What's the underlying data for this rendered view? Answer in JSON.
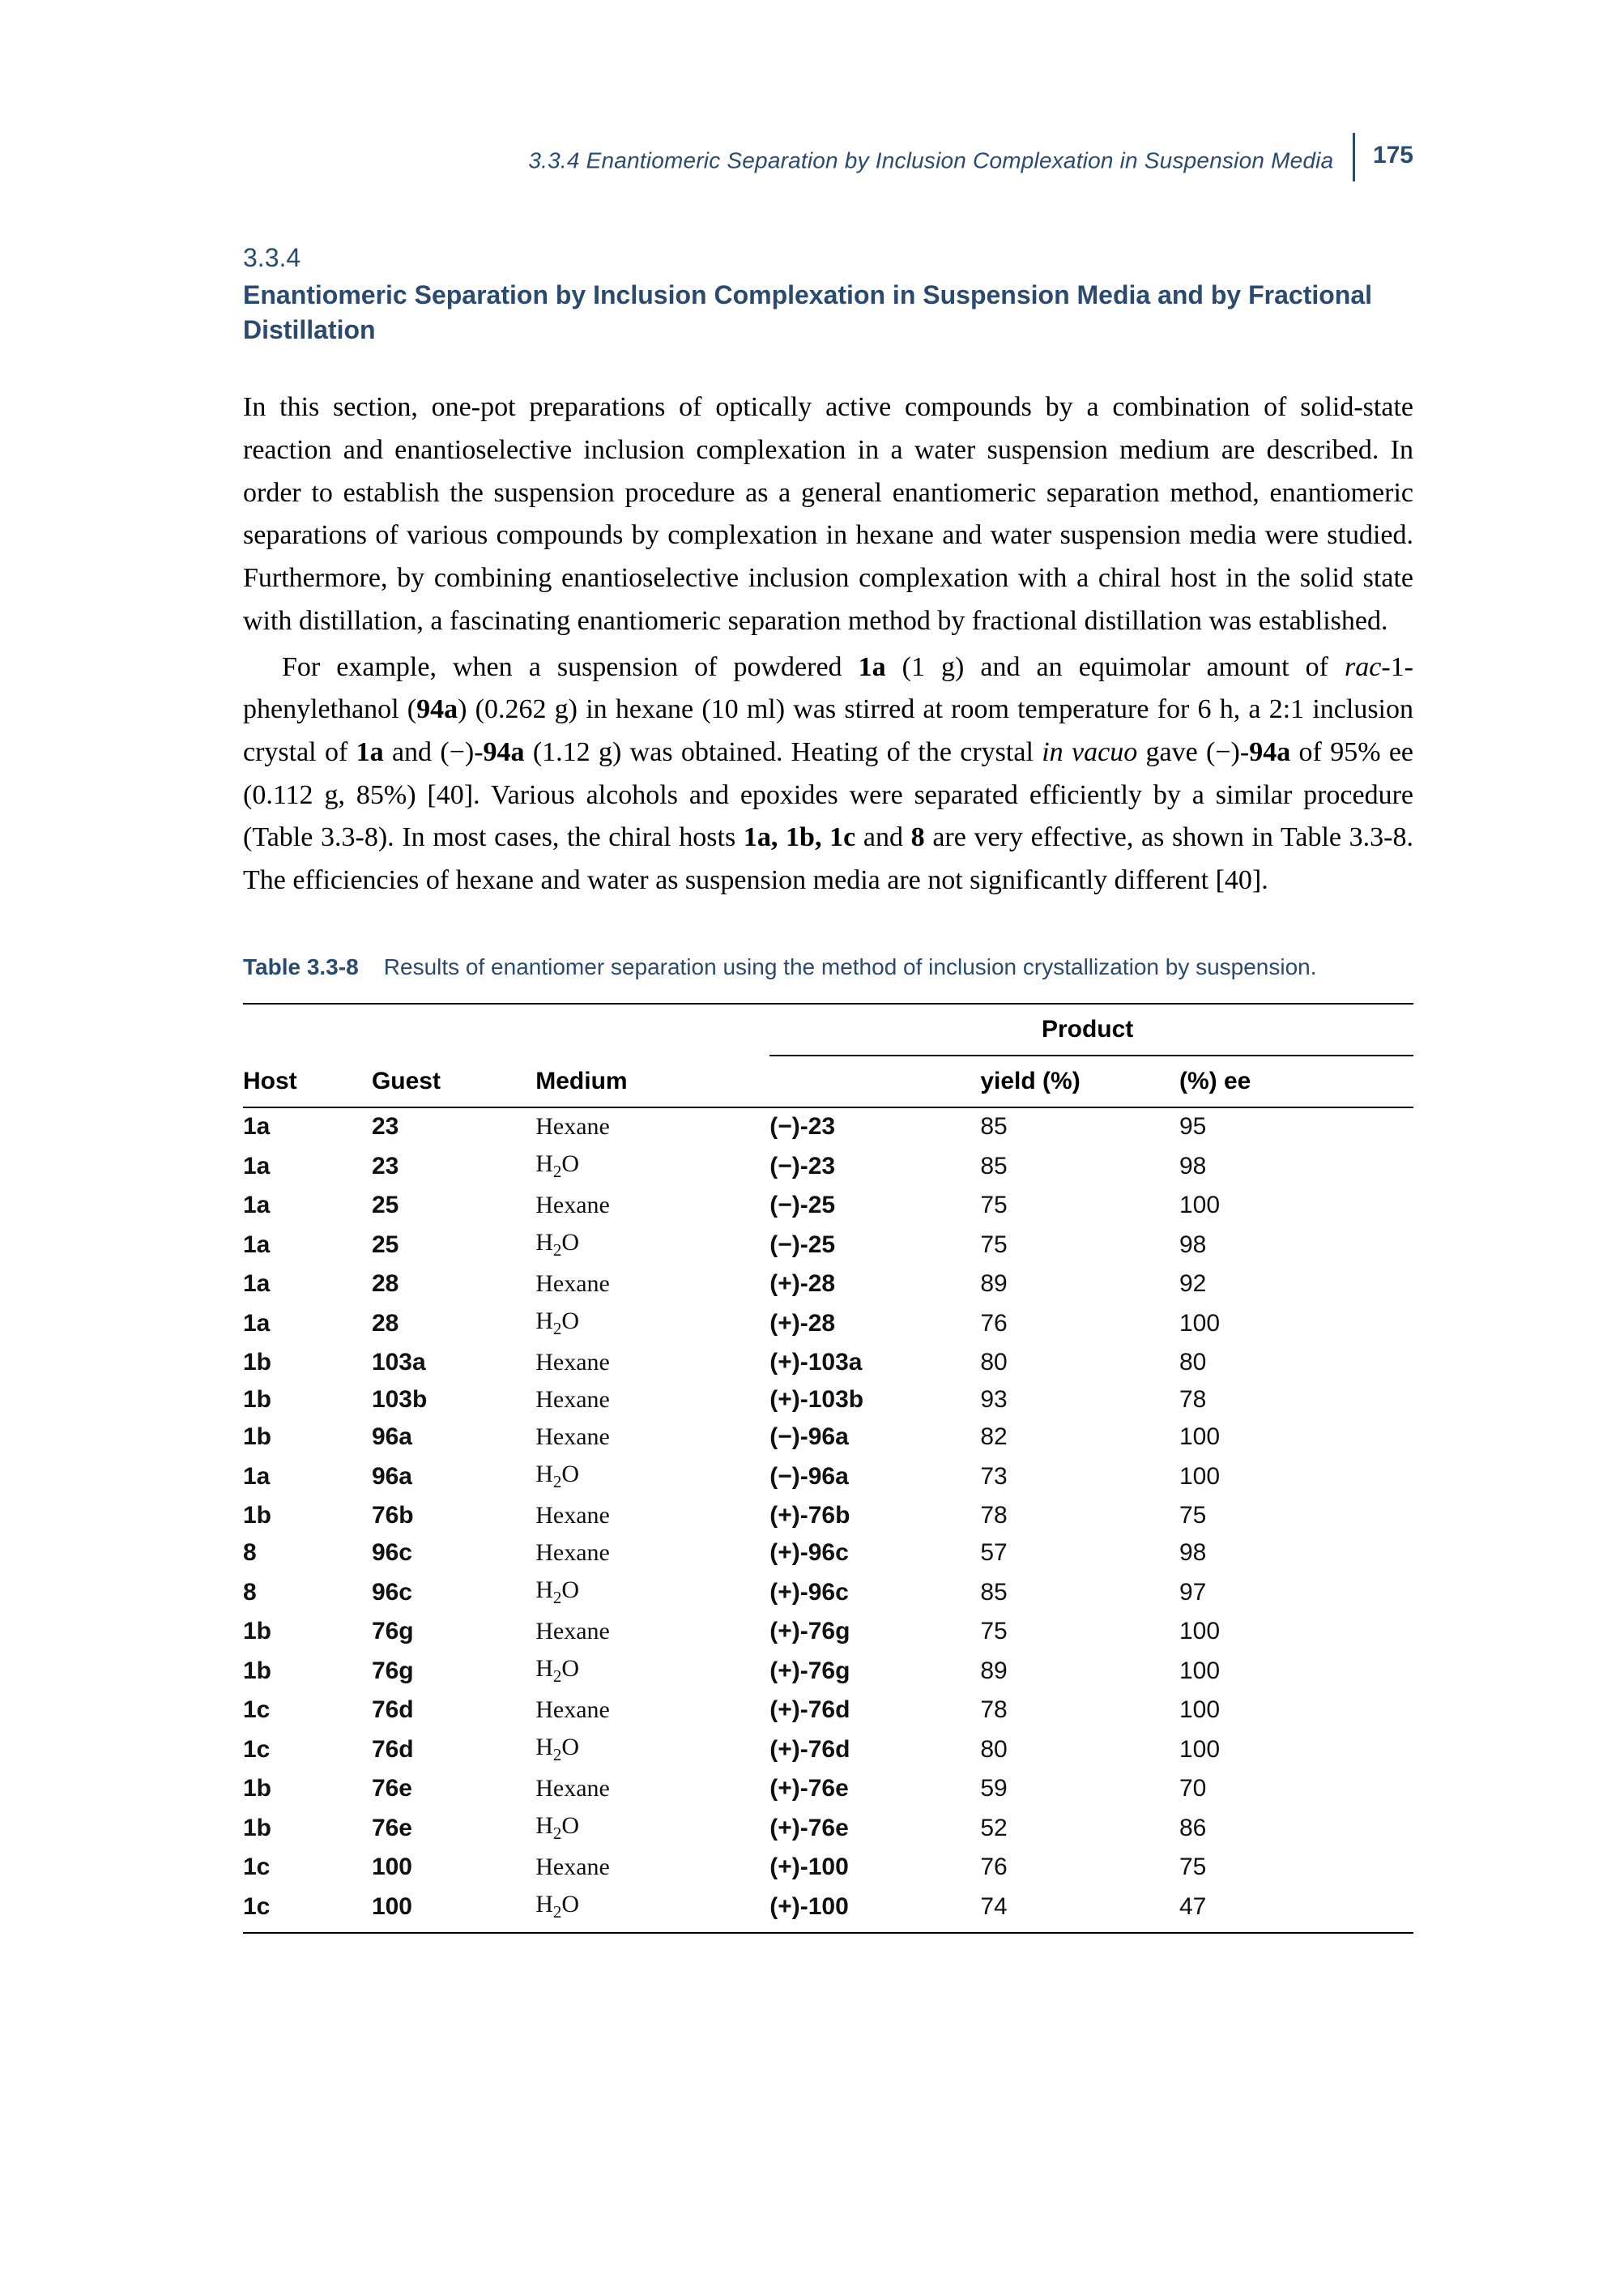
{
  "running_head": {
    "text": "3.3.4   Enantiomeric Separation by Inclusion Complexation in Suspension Media",
    "page_number": "175"
  },
  "section": {
    "number": "3.3.4",
    "title": "Enantiomeric Separation by Inclusion Complexation in Suspension Media and by Fractional Distillation"
  },
  "paragraphs": {
    "p1": "In this section, one-pot preparations of optically active compounds by a combination of solid-state reaction and enantioselective inclusion complexation in a water suspension medium are described. In order to establish the suspension procedure as a general enantiomeric separation method, enantiomeric separations of various compounds by complexation in hexane and water suspension media were studied. Furthermore, by combining enantioselective inclusion complexation with a chiral host in the solid state with distillation, a fascinating enantiomeric separation method by fractional distillation was established.",
    "p2_part1": "For example, when a suspension of powdered ",
    "p2_bold1": "1a",
    "p2_part2": " (1 g) and an equimolar amount of ",
    "p2_ital1": "rac",
    "p2_part3": "-1-phenylethanol (",
    "p2_bold2": "94a",
    "p2_part4": ") (0.262 g) in hexane (10 ml) was stirred at room temperature for 6 h, a 2:1 inclusion crystal of ",
    "p2_bold3": "1a",
    "p2_part5": " and (−)-",
    "p2_bold4": "94a",
    "p2_part6": " (1.12 g) was obtained. Heating of the crystal ",
    "p2_ital2": "in vacuo",
    "p2_part7": " gave (−)-",
    "p2_bold5": "94a",
    "p2_part8": " of 95% ee (0.112 g, 85%) [40]. Various alcohols and epoxides were separated efficiently by a similar procedure (Table 3.3-8). In most cases, the chiral hosts ",
    "p2_bold6": "1a, 1b, 1c",
    "p2_part9": " and ",
    "p2_bold7": "8",
    "p2_part10": " are very effective, as shown in Table 3.3-8. The efficiencies of hexane and water as suspension media are not significantly different [40]."
  },
  "table": {
    "label": "Table 3.3-8",
    "caption": "Results of enantiomer separation using the method of inclusion crystallization by suspension.",
    "columns": {
      "host": "Host",
      "guest": "Guest",
      "medium": "Medium",
      "product_group": "Product",
      "product": "",
      "yield": "yield (%)",
      "ee": "(%) ee"
    },
    "rows": [
      {
        "host": "1a",
        "guest": "23",
        "medium": "Hexane",
        "product": "(−)-23",
        "yield": "85",
        "ee": "95"
      },
      {
        "host": "1a",
        "guest": "23",
        "medium": "H2O",
        "product": "(−)-23",
        "yield": "85",
        "ee": "98"
      },
      {
        "host": "1a",
        "guest": "25",
        "medium": "Hexane",
        "product": "(−)-25",
        "yield": "75",
        "ee": "100"
      },
      {
        "host": "1a",
        "guest": "25",
        "medium": "H2O",
        "product": "(−)-25",
        "yield": "75",
        "ee": "98"
      },
      {
        "host": "1a",
        "guest": "28",
        "medium": "Hexane",
        "product": "(+)-28",
        "yield": "89",
        "ee": "92"
      },
      {
        "host": "1a",
        "guest": "28",
        "medium": "H2O",
        "product": "(+)-28",
        "yield": "76",
        "ee": "100"
      },
      {
        "host": "1b",
        "guest": "103a",
        "medium": "Hexane",
        "product": "(+)-103a",
        "yield": "80",
        "ee": "80"
      },
      {
        "host": "1b",
        "guest": "103b",
        "medium": "Hexane",
        "product": "(+)-103b",
        "yield": "93",
        "ee": "78"
      },
      {
        "host": "1b",
        "guest": "96a",
        "medium": "Hexane",
        "product": "(−)-96a",
        "yield": "82",
        "ee": "100"
      },
      {
        "host": "1a",
        "guest": "96a",
        "medium": "H2O",
        "product": "(−)-96a",
        "yield": "73",
        "ee": "100"
      },
      {
        "host": "1b",
        "guest": "76b",
        "medium": "Hexane",
        "product": "(+)-76b",
        "yield": "78",
        "ee": "75"
      },
      {
        "host": "8",
        "guest": "96c",
        "medium": "Hexane",
        "product": "(+)-96c",
        "yield": "57",
        "ee": "98"
      },
      {
        "host": "8",
        "guest": "96c",
        "medium": "H2O",
        "product": "(+)-96c",
        "yield": "85",
        "ee": "97"
      },
      {
        "host": "1b",
        "guest": "76g",
        "medium": "Hexane",
        "product": "(+)-76g",
        "yield": "75",
        "ee": "100"
      },
      {
        "host": "1b",
        "guest": "76g",
        "medium": "H2O",
        "product": "(+)-76g",
        "yield": "89",
        "ee": "100"
      },
      {
        "host": "1c",
        "guest": "76d",
        "medium": "Hexane",
        "product": "(+)-76d",
        "yield": "78",
        "ee": "100"
      },
      {
        "host": "1c",
        "guest": "76d",
        "medium": "H2O",
        "product": "(+)-76d",
        "yield": "80",
        "ee": "100"
      },
      {
        "host": "1b",
        "guest": "76e",
        "medium": "Hexane",
        "product": "(+)-76e",
        "yield": "59",
        "ee": "70"
      },
      {
        "host": "1b",
        "guest": "76e",
        "medium": "H2O",
        "product": "(+)-76e",
        "yield": "52",
        "ee": "86"
      },
      {
        "host": "1c",
        "guest": "100",
        "medium": "Hexane",
        "product": "(+)-100",
        "yield": "76",
        "ee": "75"
      },
      {
        "host": "1c",
        "guest": "100",
        "medium": "H2O",
        "product": "(+)-100",
        "yield": "74",
        "ee": "47"
      }
    ]
  }
}
